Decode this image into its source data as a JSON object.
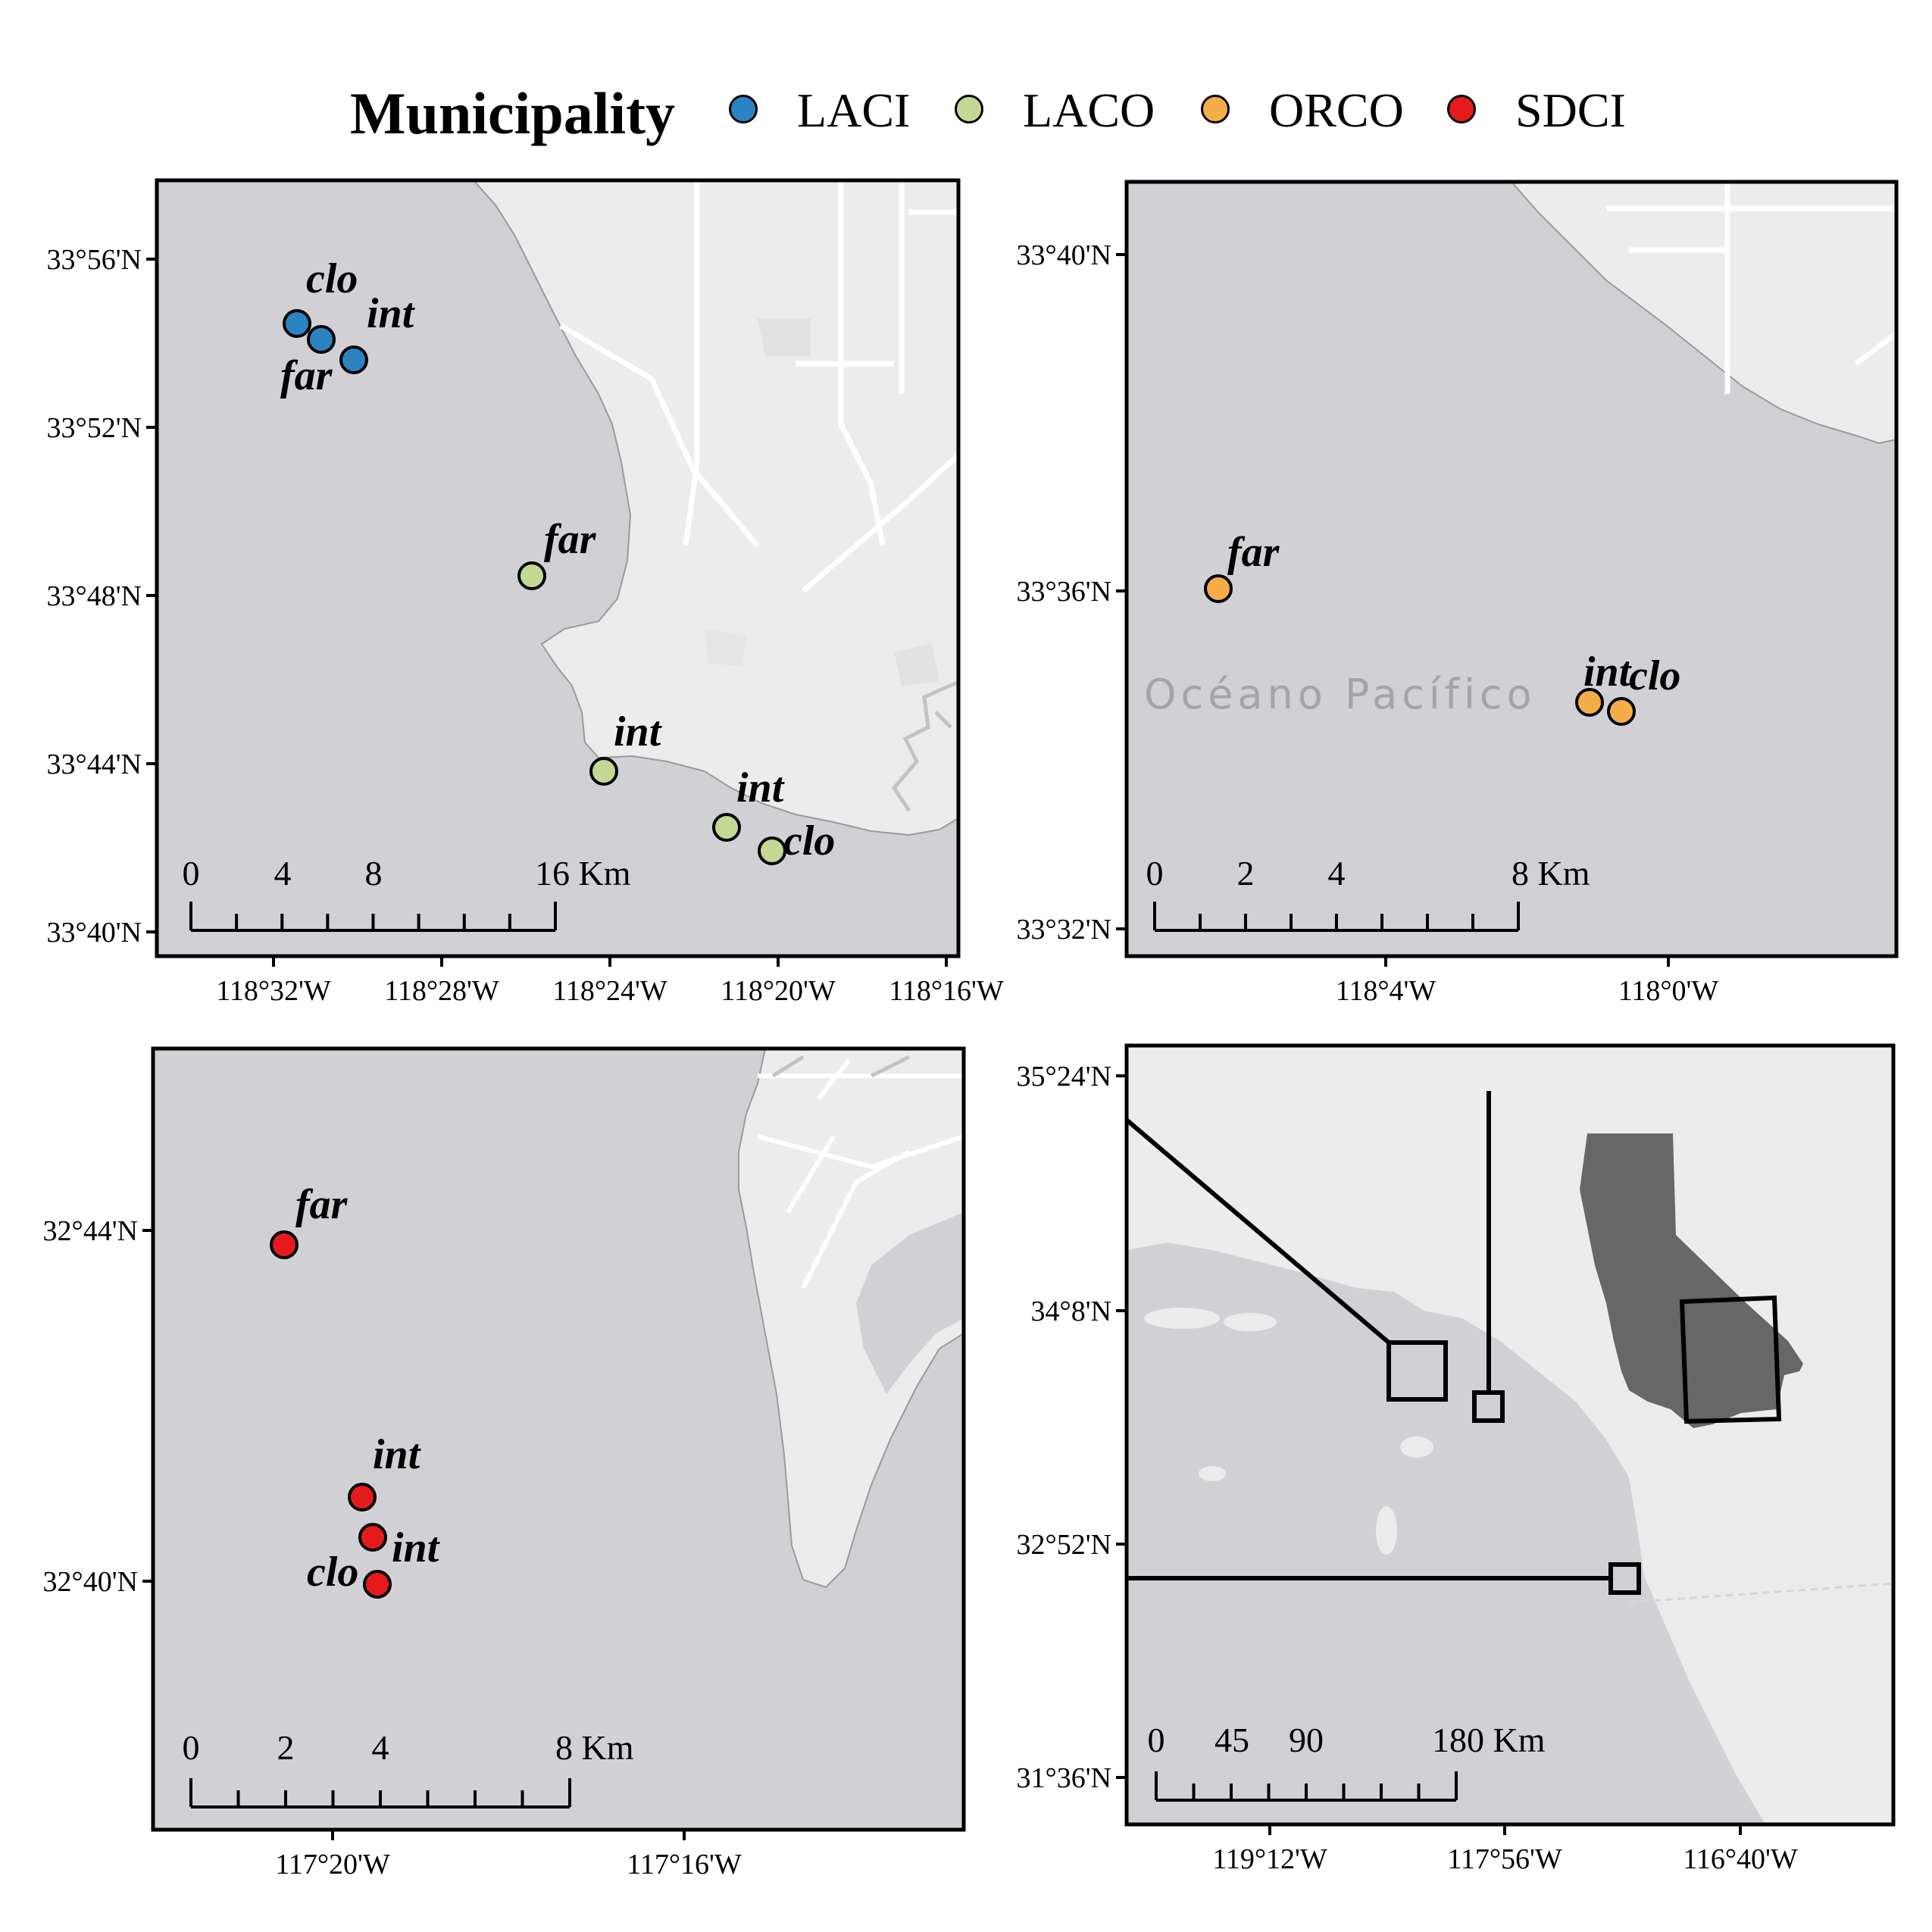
{
  "legend": {
    "title": "Municipality",
    "items": [
      {
        "label": "LACI",
        "color": "#2b83c2"
      },
      {
        "label": "LACO",
        "color": "#c4d896"
      },
      {
        "label": "ORCO",
        "color": "#f5ad48"
      },
      {
        "label": "SDCI",
        "color": "#e41a1c"
      }
    ]
  },
  "colors": {
    "ocean": "#d1d1d5",
    "land": "#ececec",
    "land_dark": "#e4e4e4",
    "road": "#ffffff",
    "california": "#676767"
  },
  "panels": {
    "laci_laco": {
      "lat_ticks": [
        "33°56'N",
        "33°52'N",
        "33°48'N",
        "33°44'N",
        "33°40'N"
      ],
      "lon_ticks": [
        "118°32'W",
        "118°28'W",
        "118°24'W",
        "118°20'W",
        "118°16'W"
      ],
      "sites": [
        {
          "municipality": "LACI",
          "label": "clo"
        },
        {
          "municipality": "LACI",
          "label": "int"
        },
        {
          "municipality": "LACI",
          "label": "far"
        },
        {
          "municipality": "LACO",
          "label": "far"
        },
        {
          "municipality": "LACO",
          "label": "int"
        },
        {
          "municipality": "LACO",
          "label": "int"
        },
        {
          "municipality": "LACO",
          "label": "clo"
        }
      ],
      "scale_labels": [
        "0",
        "4",
        "8",
        "16 Km"
      ]
    },
    "orco": {
      "lat_ticks": [
        "33°40'N",
        "33°36'N",
        "33°32'N"
      ],
      "lon_ticks": [
        "118°4'W",
        "118°0'W"
      ],
      "ocean_label": "Océano Pacífico",
      "sites": [
        {
          "municipality": "ORCO",
          "label": "far"
        },
        {
          "municipality": "ORCO",
          "label": "int"
        },
        {
          "municipality": "ORCO",
          "label": "clo"
        }
      ],
      "scale_labels": [
        "0",
        "2",
        "4",
        "8 Km"
      ]
    },
    "sdci": {
      "lat_ticks": [
        "32°44'N",
        "32°40'N"
      ],
      "lon_ticks": [
        "117°20'W",
        "117°16'W"
      ],
      "sites": [
        {
          "municipality": "SDCI",
          "label": "far"
        },
        {
          "municipality": "SDCI",
          "label": "int"
        },
        {
          "municipality": "SDCI",
          "label": "int"
        },
        {
          "municipality": "SDCI",
          "label": "clo"
        }
      ],
      "scale_labels": [
        "0",
        "2",
        "4",
        "8 Km"
      ]
    },
    "overview": {
      "lat_ticks": [
        "35°24'N",
        "34°8'N",
        "32°52'N",
        "31°36'N"
      ],
      "lon_ticks": [
        "119°12'W",
        "117°56'W",
        "116°40'W"
      ],
      "scale_labels": [
        "0",
        "45",
        "90",
        "180 Km"
      ]
    }
  }
}
